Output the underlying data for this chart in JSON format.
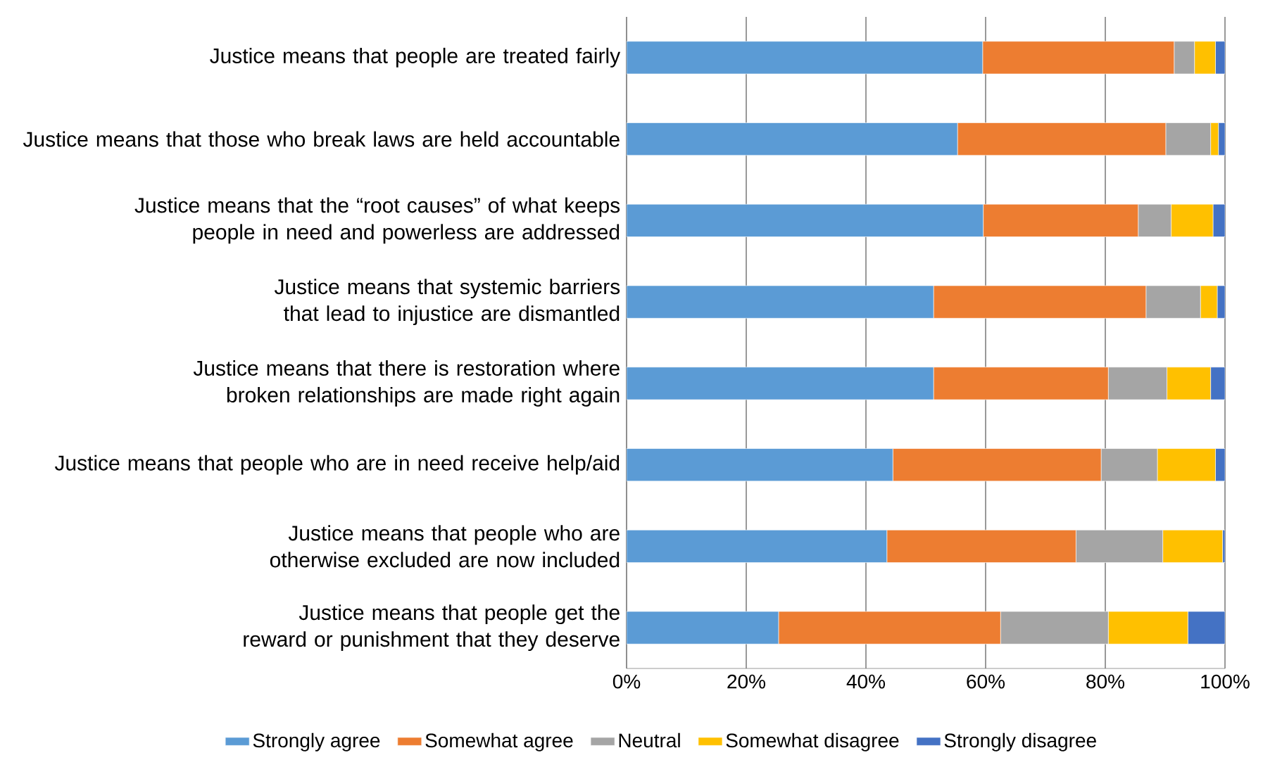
{
  "chart_data": {
    "type": "bar",
    "orientation": "horizontal",
    "stacked": true,
    "categories": [
      "Justice means that people are treated fairly",
      "Justice means that those who break laws are held accountable",
      "Justice means that the “root causes” of what keeps people in need and powerless are addressed",
      "Justice means that systemic barriers that lead to injustice are dismantled",
      "Justice means that there is restoration where broken relationships are made right again",
      "Justice means that people who are in need receive help/aid",
      "Justice means that people who are otherwise excluded are now included",
      "Justice means that people get the reward or punishment that they deserve"
    ],
    "series": [
      {
        "name": "Strongly agree",
        "color": "#5b9bd5",
        "values": [
          59.5,
          55.3,
          59.6,
          51.3,
          51.3,
          44.5,
          43.5,
          25.4
        ]
      },
      {
        "name": "Somewhat agree",
        "color": "#ed7d31",
        "values": [
          32.0,
          34.8,
          25.9,
          35.5,
          29.2,
          34.8,
          31.6,
          37.1
        ]
      },
      {
        "name": "Neutral",
        "color": "#a5a5a5",
        "values": [
          3.4,
          7.5,
          5.5,
          9.1,
          9.8,
          9.4,
          14.5,
          18.0
        ]
      },
      {
        "name": "Somewhat disagree",
        "color": "#ffc000",
        "values": [
          3.5,
          1.3,
          7.0,
          2.8,
          7.3,
          9.7,
          10.0,
          13.3
        ]
      },
      {
        "name": "Strongly disagree",
        "color": "#4472c4",
        "values": [
          1.6,
          1.1,
          2.0,
          1.3,
          2.4,
          1.6,
          0.4,
          6.2
        ]
      }
    ],
    "xlim": [
      0,
      100
    ],
    "xticks": [
      {
        "value": 0,
        "label": "0%"
      },
      {
        "value": 20,
        "label": "20%"
      },
      {
        "value": 40,
        "label": "40%"
      },
      {
        "value": 60,
        "label": "60%"
      },
      {
        "value": 80,
        "label": "80%"
      },
      {
        "value": 100,
        "label": "100%"
      }
    ],
    "grid": "x",
    "legend": "bottom"
  }
}
